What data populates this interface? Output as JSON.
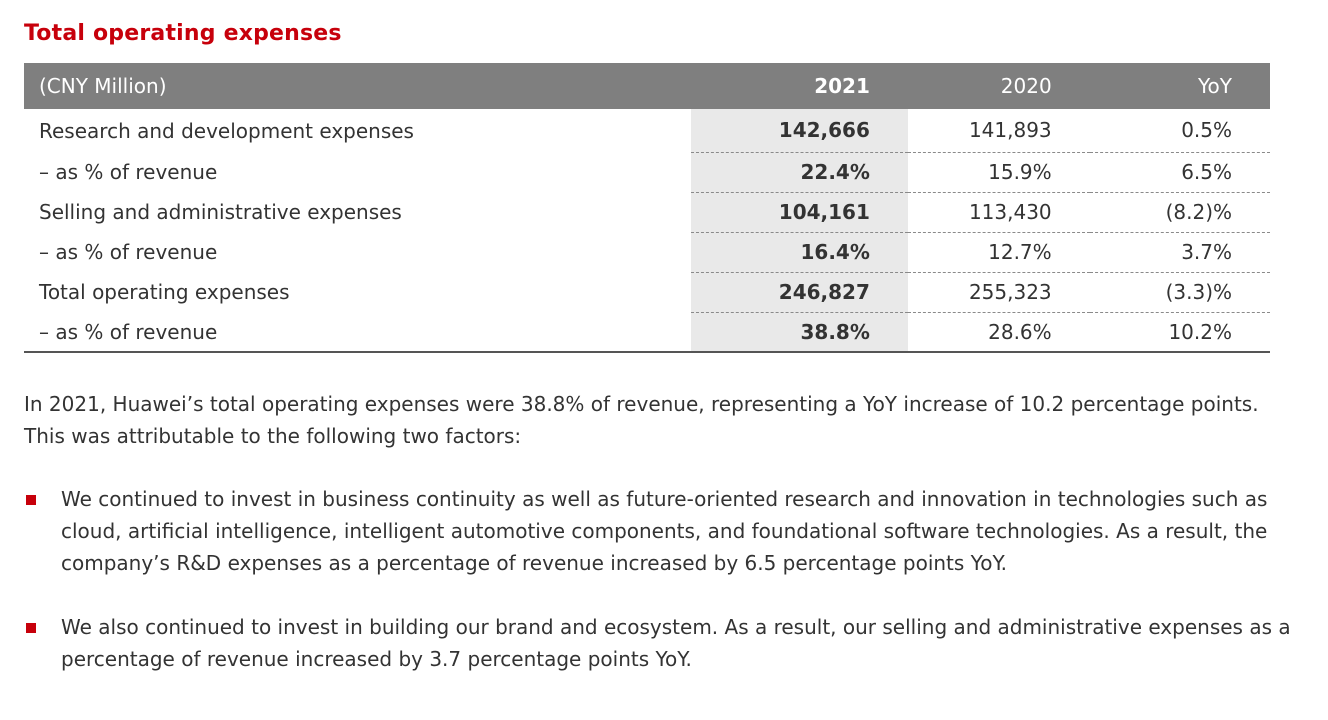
{
  "section": {
    "title": "Total operating expenses"
  },
  "table": {
    "headers": {
      "label": "(CNY Million)",
      "y2021": "2021",
      "y2020": "2020",
      "yoy": "YoY"
    },
    "rows": [
      {
        "label": "Research and development expenses",
        "y2021": "142,666",
        "y2020": "141,893",
        "yoy": "0.5%"
      },
      {
        "label": "– as % of revenue",
        "y2021": "22.4%",
        "y2020": "15.9%",
        "yoy": "6.5%"
      },
      {
        "label": "Selling and administrative expenses",
        "y2021": "104,161",
        "y2020": "113,430",
        "yoy": "(8.2)%"
      },
      {
        "label": "– as % of revenue",
        "y2021": "16.4%",
        "y2020": "12.7%",
        "yoy": "3.7%"
      },
      {
        "label": "Total operating expenses",
        "y2021": "246,827",
        "y2020": "255,323",
        "yoy": "(3.3)%"
      },
      {
        "label": "– as % of revenue",
        "y2021": "38.8%",
        "y2020": "28.6%",
        "yoy": "10.2%"
      }
    ]
  },
  "body": {
    "intro": "In 2021, Huawei’s total operating expenses were 38.8% of revenue, representing a YoY increase of 10.2 percentage points. This was attributable to the following two factors:",
    "bullets": [
      "We continued to invest in business continuity as well as future-oriented research and innovation in technologies such as cloud, artificial intelligence, intelligent automotive components, and foundational software technologies. As a result, the company’s R&D expenses as a percentage of revenue increased by 6.5 percentage points YoY.",
      "We also continued to invest in building our brand and ecosystem. As a result, our selling and administrative expenses as a percentage of revenue increased by 3.7 percentage points YoY."
    ]
  },
  "colors": {
    "accent": "#c7000b",
    "header_bg": "#7f7f7f",
    "highlight_column": "#e9e9e9",
    "text": "#333333"
  }
}
